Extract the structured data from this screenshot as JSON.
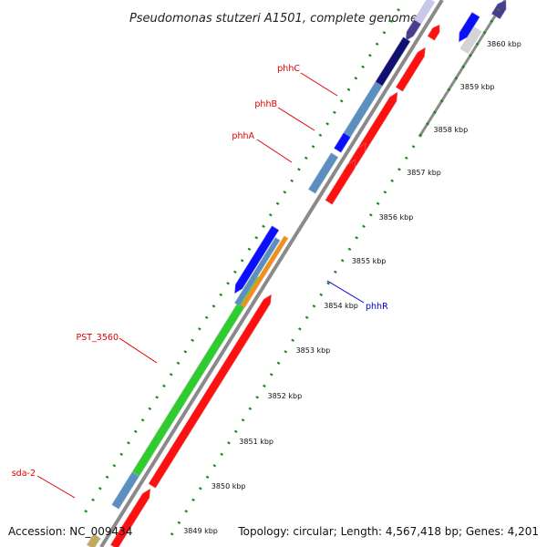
{
  "title": "Pseudomonas stutzeri A1501, complete genome",
  "footer": {
    "accession": "Accession: NC_009434",
    "summary": "Topology: circular; Length: 4,567,418 bp; Genes: 4,201"
  },
  "ticks": [
    "3849 kbp",
    "3850 kbp",
    "3851 kbp",
    "3852 kbp",
    "3853 kbp",
    "3854 kbp",
    "3855 kbp",
    "3856 kbp",
    "3857 kbp",
    "3858 kbp",
    "3859 kbp",
    "3860 kbp"
  ],
  "gene_labels": {
    "phhC": "phhC",
    "phhB": "phhB",
    "phhA": "phhA",
    "PST_3560": "PST_3560",
    "sda2": "sda-2",
    "phhR": "phhR"
  },
  "colors": {
    "backbone": "#8a8a8a",
    "forward_cds": "#ff1010",
    "reverse_cds": "#0a10ff",
    "steelblue": "#5b8fc0",
    "green": "#2ecc2e",
    "orange": "#f09018",
    "navy": "#101070",
    "slate": "#4a3c90",
    "lightgray": "#d4d4d4",
    "tan": "#c0aa60",
    "label_red": "#e00000",
    "label_blue": "#0000cc",
    "tick_green": "#1a8a1a"
  }
}
